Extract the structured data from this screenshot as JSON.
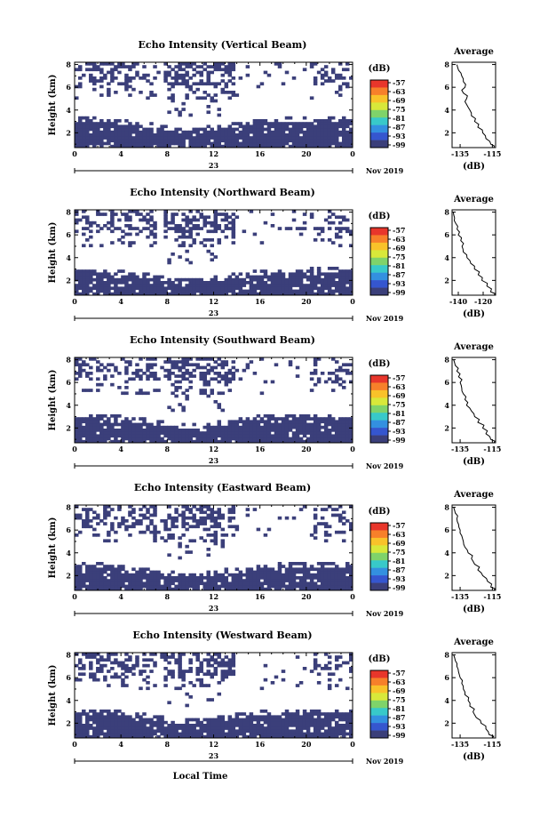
{
  "chart_data": [
    {
      "type": "heatmap",
      "title": "Echo Intensity (Vertical Beam)",
      "ylabel": "Height (km)",
      "xticks": [
        "0",
        "4",
        "8",
        "12",
        "16",
        "20",
        "0"
      ],
      "yticks": [
        "2",
        "4",
        "6",
        "8"
      ],
      "date_day": "23",
      "month_year": "Nov 2019",
      "xlim": [
        0,
        24
      ],
      "ylim": [
        0.7,
        8.2
      ],
      "colorbar": {
        "unit": "(dB)",
        "labels": [
          "-57",
          "-63",
          "-69",
          "-75",
          "-81",
          "-87",
          "-93",
          "-99"
        ]
      },
      "profile": {
        "title": "Average",
        "xlabel": "(dB)",
        "xticks": [
          "-135",
          "-115"
        ],
        "yticks": [
          "2",
          "4",
          "6",
          "8"
        ],
        "xlim": [
          -140,
          -113
        ],
        "points": [
          [
            -137,
            8.0
          ],
          [
            -136,
            7.5
          ],
          [
            -134,
            7.0
          ],
          [
            -133,
            6.5
          ],
          [
            -132,
            6.0
          ],
          [
            -133,
            5.5
          ],
          [
            -131,
            5.0
          ],
          [
            -131,
            4.5
          ],
          [
            -129,
            4.0
          ],
          [
            -128,
            3.5
          ],
          [
            -126,
            3.0
          ],
          [
            -124,
            2.5
          ],
          [
            -121,
            2.0
          ],
          [
            -119,
            1.5
          ],
          [
            -116,
            1.0
          ],
          [
            -114,
            0.7
          ]
        ]
      }
    },
    {
      "type": "heatmap",
      "title": "Echo Intensity (Northward Beam)",
      "ylabel": "Height (km)",
      "xticks": [
        "0",
        "4",
        "8",
        "12",
        "16",
        "20",
        "0"
      ],
      "yticks": [
        "2",
        "4",
        "6",
        "8"
      ],
      "date_day": "23",
      "month_year": "Nov 2019",
      "xlim": [
        0,
        24
      ],
      "ylim": [
        0.7,
        8.2
      ],
      "colorbar": {
        "unit": "(dB)",
        "labels": [
          "-57",
          "-63",
          "-69",
          "-75",
          "-81",
          "-87",
          "-93",
          "-99"
        ]
      },
      "profile": {
        "title": "Average",
        "xlabel": "(dB)",
        "xticks": [
          "-140",
          "-120"
        ],
        "yticks": [
          "2",
          "4",
          "6",
          "8"
        ],
        "xlim": [
          -145,
          -110
        ],
        "points": [
          [
            -144,
            8.0
          ],
          [
            -143,
            7.5
          ],
          [
            -142,
            7.0
          ],
          [
            -141,
            6.5
          ],
          [
            -140,
            6.0
          ],
          [
            -138,
            5.5
          ],
          [
            -137,
            5.0
          ],
          [
            -136,
            4.5
          ],
          [
            -133,
            4.0
          ],
          [
            -130,
            3.5
          ],
          [
            -127,
            3.0
          ],
          [
            -124,
            2.5
          ],
          [
            -121,
            2.0
          ],
          [
            -117,
            1.5
          ],
          [
            -114,
            1.0
          ],
          [
            -111,
            0.7
          ]
        ]
      }
    },
    {
      "type": "heatmap",
      "title": "Echo Intensity (Southward Beam)",
      "ylabel": "Height (km)",
      "xticks": [
        "0",
        "4",
        "8",
        "12",
        "16",
        "20",
        "0"
      ],
      "yticks": [
        "2",
        "4",
        "6",
        "8"
      ],
      "date_day": "23",
      "month_year": "Nov 2019",
      "xlim": [
        0,
        24
      ],
      "ylim": [
        0.7,
        8.2
      ],
      "colorbar": {
        "unit": "(dB)",
        "labels": [
          "-57",
          "-63",
          "-69",
          "-75",
          "-81",
          "-87",
          "-93",
          "-99"
        ]
      },
      "profile": {
        "title": "Average",
        "xlabel": "(dB)",
        "xticks": [
          "-135",
          "-115"
        ],
        "yticks": [
          "2",
          "4",
          "6",
          "8"
        ],
        "xlim": [
          -140,
          -113
        ],
        "points": [
          [
            -139,
            8.0
          ],
          [
            -138,
            7.5
          ],
          [
            -137,
            7.0
          ],
          [
            -136,
            6.5
          ],
          [
            -135,
            6.0
          ],
          [
            -134,
            5.5
          ],
          [
            -133,
            5.0
          ],
          [
            -132,
            4.5
          ],
          [
            -131,
            4.0
          ],
          [
            -128,
            3.5
          ],
          [
            -126,
            3.0
          ],
          [
            -124,
            2.5
          ],
          [
            -121,
            2.0
          ],
          [
            -119,
            1.5
          ],
          [
            -116,
            1.0
          ],
          [
            -114,
            0.7
          ]
        ]
      }
    },
    {
      "type": "heatmap",
      "title": "Echo Intensity (Eastward Beam)",
      "ylabel": "Height (km)",
      "xticks": [
        "0",
        "4",
        "8",
        "12",
        "16",
        "20",
        "0"
      ],
      "yticks": [
        "2",
        "4",
        "6",
        "8"
      ],
      "date_day": "23",
      "month_year": "Nov 2019",
      "xlim": [
        0,
        24
      ],
      "ylim": [
        0.7,
        8.2
      ],
      "colorbar": {
        "unit": "(dB)",
        "labels": [
          "-57",
          "-63",
          "-69",
          "-75",
          "-81",
          "-87",
          "-93",
          "-99"
        ]
      },
      "profile": {
        "title": "Average",
        "xlabel": "(dB)",
        "xticks": [
          "-135",
          "-115"
        ],
        "yticks": [
          "2",
          "4",
          "6",
          "8"
        ],
        "xlim": [
          -140,
          -113
        ],
        "points": [
          [
            -139,
            8.0
          ],
          [
            -138,
            7.5
          ],
          [
            -137,
            7.0
          ],
          [
            -136,
            6.5
          ],
          [
            -135,
            6.0
          ],
          [
            -134,
            5.5
          ],
          [
            -133,
            5.0
          ],
          [
            -132,
            4.5
          ],
          [
            -130,
            4.0
          ],
          [
            -128,
            3.5
          ],
          [
            -126,
            3.0
          ],
          [
            -124,
            2.5
          ],
          [
            -121,
            2.0
          ],
          [
            -118,
            1.5
          ],
          [
            -116,
            1.0
          ],
          [
            -114,
            0.7
          ]
        ]
      }
    },
    {
      "type": "heatmap",
      "title": "Echo Intensity (Westward Beam)",
      "ylabel": "Height (km)",
      "xticks": [
        "0",
        "4",
        "8",
        "12",
        "16",
        "20",
        "0"
      ],
      "yticks": [
        "2",
        "4",
        "6",
        "8"
      ],
      "date_day": "23",
      "month_year": "Nov 2019",
      "xlabel": "Local Time",
      "xlim": [
        0,
        24
      ],
      "ylim": [
        0.7,
        8.2
      ],
      "colorbar": {
        "unit": "(dB)",
        "labels": [
          "-57",
          "-63",
          "-69",
          "-75",
          "-81",
          "-87",
          "-93",
          "-99"
        ]
      },
      "profile": {
        "title": "Average",
        "xlabel": "(dB)",
        "xticks": [
          "-135",
          "-115"
        ],
        "yticks": [
          "2",
          "4",
          "6",
          "8"
        ],
        "xlim": [
          -140,
          -113
        ],
        "points": [
          [
            -139,
            8.0
          ],
          [
            -138,
            7.5
          ],
          [
            -137,
            7.0
          ],
          [
            -136,
            6.5
          ],
          [
            -135,
            6.0
          ],
          [
            -134,
            5.5
          ],
          [
            -133,
            5.0
          ],
          [
            -132,
            4.5
          ],
          [
            -130,
            4.0
          ],
          [
            -129,
            3.5
          ],
          [
            -127,
            3.0
          ],
          [
            -125,
            2.5
          ],
          [
            -122,
            2.0
          ],
          [
            -119,
            1.5
          ],
          [
            -117,
            1.0
          ],
          [
            -115,
            0.7
          ]
        ]
      }
    }
  ],
  "colors": {
    "echo": "#3b3f7a",
    "colorbar": [
      "#e8362b",
      "#f7802a",
      "#f9c22a",
      "#d8e83a",
      "#7fd36a",
      "#38c9c9",
      "#3390e0",
      "#3556cf",
      "#3b3f7a"
    ]
  }
}
